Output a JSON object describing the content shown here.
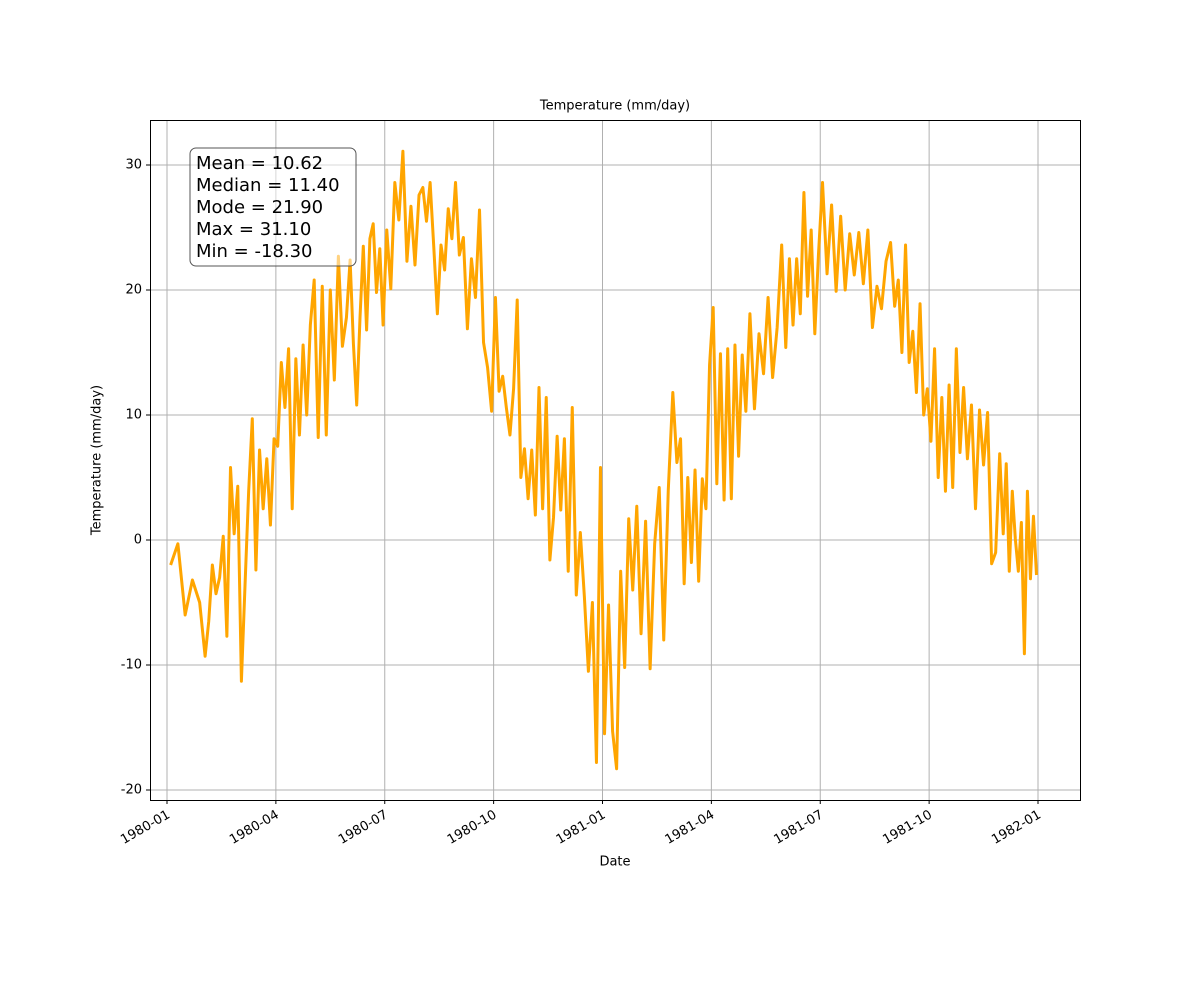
{
  "chart_data": {
    "type": "line",
    "title": "Temperature (mm/day)",
    "xlabel": "Date",
    "ylabel": "Temperature (mm/day)",
    "annotations": [
      "Mean = 10.62",
      "Median = 11.40",
      "Mode = 21.90",
      "Max = 31.10",
      "Min = -18.30"
    ],
    "color": "#ffa500",
    "grid": true,
    "ylim": [
      -20.8,
      33.6
    ],
    "yticks": [
      -20,
      -10,
      0,
      10,
      20,
      30
    ],
    "xticks": [
      "1980-01",
      "1980-04",
      "1980-07",
      "1980-10",
      "1981-01",
      "1981-04",
      "1981-07",
      "1981-10",
      "1982-01"
    ],
    "x": [
      "1980-01",
      "1980-01",
      "1980-01",
      "1980-01",
      "1980-01",
      "1980-02",
      "1980-02",
      "1980-02",
      "1980-02",
      "1980-02",
      "1980-02",
      "1980-02",
      "1980-02",
      "1980-02",
      "1980-02",
      "1980-03",
      "1980-03",
      "1980-03",
      "1980-03",
      "1980-03",
      "1980-03",
      "1980-03",
      "1980-03",
      "1980-03",
      "1980-03",
      "1980-04",
      "1980-04",
      "1980-04",
      "1980-04",
      "1980-04",
      "1980-04",
      "1980-04",
      "1980-04",
      "1980-04",
      "1980-04",
      "1980-05",
      "1980-05",
      "1980-05",
      "1980-05",
      "1980-05",
      "1980-05",
      "1980-05",
      "1980-05",
      "1980-05",
      "1980-06",
      "1980-06",
      "1980-06",
      "1980-06",
      "1980-06",
      "1980-06",
      "1980-06",
      "1980-06",
      "1980-06",
      "1980-06",
      "1980-06",
      "1980-07",
      "1980-07",
      "1980-07",
      "1980-07",
      "1980-07",
      "1980-07",
      "1980-07",
      "1980-07",
      "1980-07",
      "1980-08",
      "1980-08",
      "1980-08",
      "1980-08",
      "1980-08",
      "1980-08",
      "1980-08",
      "1980-08",
      "1980-08",
      "1980-08",
      "1980-09",
      "1980-09",
      "1980-09",
      "1980-09",
      "1980-09",
      "1980-09",
      "1980-09",
      "1980-09",
      "1980-09",
      "1980-10",
      "1980-10",
      "1980-10",
      "1980-10",
      "1980-10",
      "1980-10",
      "1980-10",
      "1980-10",
      "1980-10",
      "1980-10",
      "1980-11",
      "1980-11",
      "1980-11",
      "1980-11",
      "1980-11",
      "1980-11",
      "1980-11",
      "1980-11",
      "1980-11",
      "1980-11",
      "1980-12",
      "1980-12",
      "1980-12",
      "1980-12",
      "1980-12",
      "1980-12",
      "1980-12",
      "1980-12",
      "1980-12",
      "1981-01",
      "1981-01",
      "1981-01",
      "1981-01",
      "1981-01",
      "1981-01",
      "1981-01",
      "1981-01",
      "1981-01",
      "1981-02",
      "1981-02",
      "1981-02",
      "1981-02",
      "1981-02",
      "1981-02",
      "1981-02",
      "1981-02",
      "1981-03",
      "1981-03",
      "1981-03",
      "1981-03",
      "1981-03",
      "1981-03",
      "1981-03",
      "1981-03",
      "1981-03",
      "1981-03",
      "1981-04",
      "1981-04",
      "1981-04",
      "1981-04",
      "1981-04",
      "1981-04",
      "1981-04",
      "1981-04",
      "1981-04",
      "1981-04",
      "1981-05",
      "1981-05",
      "1981-05",
      "1981-05",
      "1981-05",
      "1981-05",
      "1981-05",
      "1981-05",
      "1981-06",
      "1981-06",
      "1981-06",
      "1981-06",
      "1981-06",
      "1981-06",
      "1981-06",
      "1981-06",
      "1981-06",
      "1981-06",
      "1981-07",
      "1981-07",
      "1981-07",
      "1981-07",
      "1981-07",
      "1981-07",
      "1981-07",
      "1981-07",
      "1981-08",
      "1981-08",
      "1981-08",
      "1981-08",
      "1981-08",
      "1981-08",
      "1981-08",
      "1981-08",
      "1981-09",
      "1981-09",
      "1981-09",
      "1981-09",
      "1981-09",
      "1981-09",
      "1981-09",
      "1981-09",
      "1981-09",
      "1981-09",
      "1981-10",
      "1981-10",
      "1981-10",
      "1981-10",
      "1981-10",
      "1981-10",
      "1981-10",
      "1981-10",
      "1981-10",
      "1981-10",
      "1981-11",
      "1981-11",
      "1981-11",
      "1981-11",
      "1981-11",
      "1981-11",
      "1981-11",
      "1981-11",
      "1981-11",
      "1981-12",
      "1981-12",
      "1981-12",
      "1981-12",
      "1981-12",
      "1981-12",
      "1981-12",
      "1981-12",
      "1981-12",
      "1981-12",
      "1981-12",
      "1981-12"
    ],
    "values": [
      -2,
      -0.3,
      -6,
      -3.2,
      -5,
      -9.3,
      -6.5,
      -2,
      -4.3,
      -3,
      0.3,
      -7.7,
      5.8,
      0.5,
      4.3,
      -11.3,
      -3.6,
      3.9,
      9.7,
      -2.4,
      7.2,
      2.5,
      6.5,
      1.2,
      8.1,
      7.5,
      14.2,
      10.6,
      15.3,
      2.5,
      14.5,
      8.4,
      15.6,
      10,
      17.2,
      20.8,
      8.2,
      20.3,
      8.4,
      20,
      12.8,
      22.7,
      15.5,
      17.8,
      22.4,
      15.7,
      10.8,
      17.8,
      23.5,
      16.8,
      24.1,
      25.3,
      19.8,
      23.3,
      17.2,
      24.8,
      20.1,
      28.6,
      25.6,
      31.1,
      22.3,
      26.7,
      22,
      27.6,
      28.2,
      25.5,
      28.6,
      23.5,
      18.1,
      23.6,
      21.6,
      26.5,
      24.1,
      28.6,
      22.8,
      24.2,
      16.9,
      22.5,
      19.4,
      26.4,
      15.8,
      13.8,
      10.3,
      19.4,
      11.9,
      13.1,
      10.6,
      8.4,
      12.1,
      19.2,
      5,
      7.3,
      3.3,
      7.2,
      2,
      12.2,
      2.5,
      11.4,
      -1.6,
      1.8,
      8.3,
      2.4,
      8.1,
      -2.5,
      10.6,
      -4.4,
      0.6,
      -4.5,
      -10.5,
      -5,
      -17.8,
      5.8,
      -15.5,
      -5.2,
      -15.3,
      -18.3,
      -2.5,
      -10.2,
      1.7,
      -4,
      2.7,
      -7.5,
      1.5,
      -10.3,
      -0.3,
      4.2,
      -8,
      4,
      11.8,
      6.2,
      8.1,
      -3.5,
      5,
      -1.8,
      5.6,
      -3.3,
      4.9,
      2.5,
      14,
      18.6,
      4.5,
      14.9,
      3.2,
      15.3,
      3.3,
      15.6,
      6.7,
      14.8,
      10.3,
      18.1,
      10.5,
      16.5,
      13.3,
      19.4,
      13,
      17,
      23.6,
      15.4,
      22.5,
      17.2,
      22.5,
      18.1,
      27.8,
      19.5,
      24.8,
      16.5,
      22.8,
      28.6,
      21.3,
      26.8,
      19.9,
      25.9,
      20,
      24.5,
      21.2,
      24.6,
      20.5,
      24.8,
      17,
      20.3,
      18.5,
      22.3,
      23.8,
      18.7,
      20.8,
      15,
      23.6,
      14.2,
      16.7,
      11.8,
      18.9,
      10,
      12.1,
      7.9,
      15.3,
      5,
      11.4,
      3.9,
      12.4,
      4.2,
      15.3,
      7,
      12.2,
      6.5,
      10.8,
      2.5,
      10.4,
      6,
      10.2,
      -1.9,
      -1,
      6.9,
      0.5,
      6.1,
      -2.5,
      3.9,
      0.1,
      -2.5,
      1.4,
      -9.1,
      3.9,
      -3.1,
      1.9,
      -2.8
    ]
  }
}
